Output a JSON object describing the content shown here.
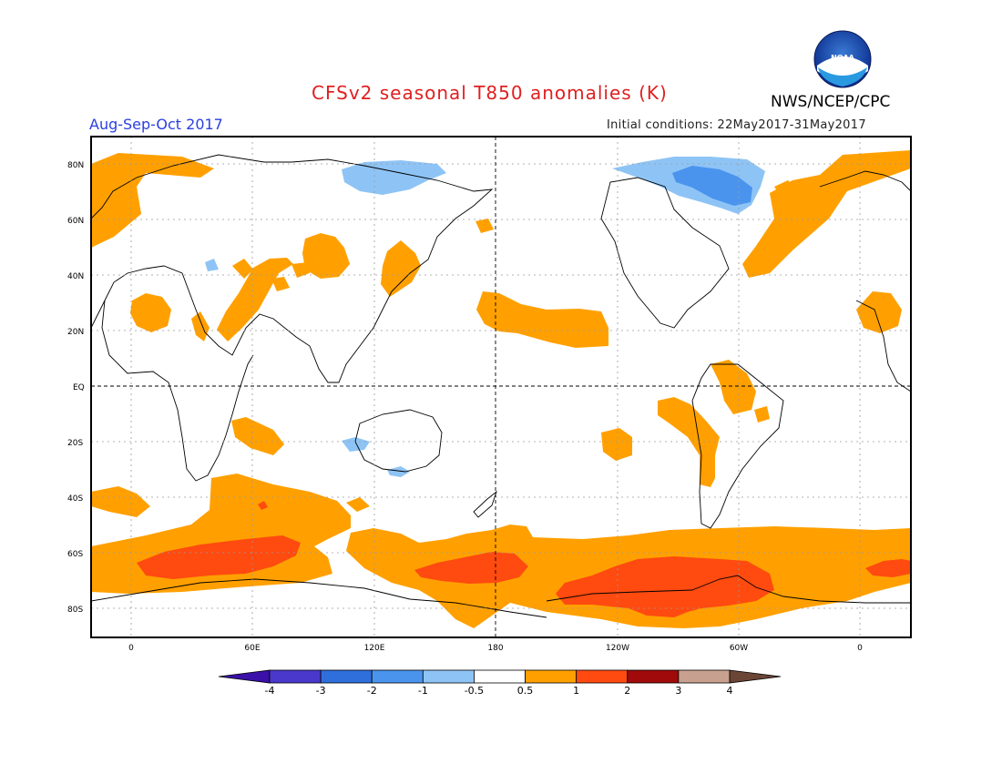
{
  "header": {
    "title": "CFSv2 seasonal T850 anomalies (K)",
    "organization": "NWS/NCEP/CPC",
    "logo_text": "NOAA",
    "period": "Aug-Sep-Oct 2017",
    "initial_conditions": "Initial conditions: 22May2017-31May2017"
  },
  "map": {
    "latitude_labels": [
      "80N",
      "60N",
      "40N",
      "20N",
      "EQ",
      "20S",
      "40S",
      "60S",
      "80S"
    ],
    "longitude_labels": [
      "0",
      "60E",
      "120E",
      "180",
      "120W",
      "60W",
      "0"
    ]
  },
  "colorbar": {
    "labels": [
      "-4",
      "-3",
      "-2",
      "-1",
      "-0.5",
      "0.5",
      "1",
      "2",
      "3",
      "4"
    ],
    "colors": [
      "#3a10a8",
      "#4a38cc",
      "#2f6fdc",
      "#4a94ee",
      "#8ec4f5",
      "#ffffff",
      "#ffa000",
      "#ff4a10",
      "#a00a0a",
      "#c8a090",
      "#6b4536"
    ]
  },
  "palette": {
    "warm_1": "#ffa000",
    "warm_2": "#ff4a10",
    "cool_1": "#8ec4f5",
    "cool_2": "#4a94ee",
    "title": "#e01f1f",
    "period": "#2a3fe0"
  }
}
